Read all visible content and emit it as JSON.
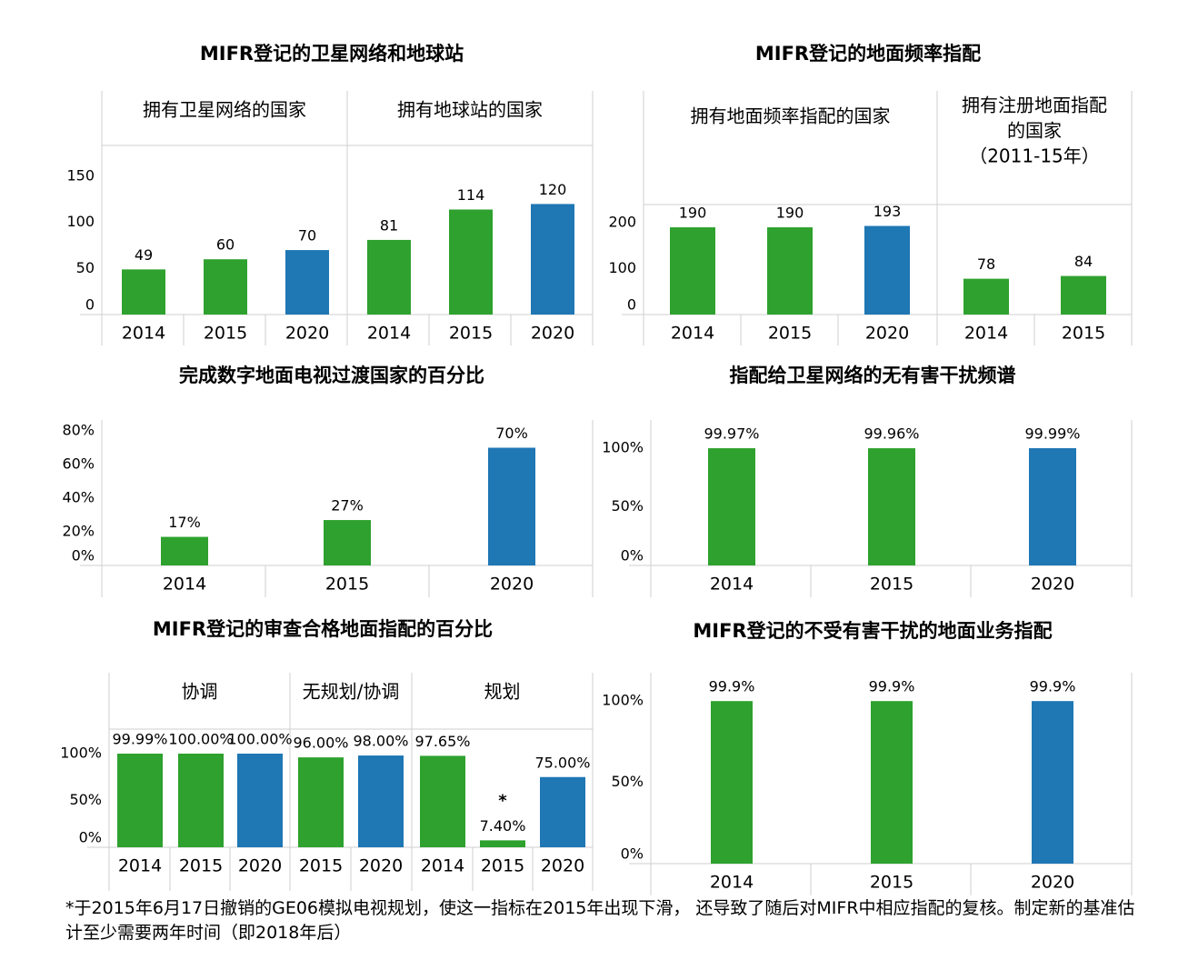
{
  "colors": {
    "green": "#2ea12e",
    "blue": "#1f77b4",
    "grid": "#cfcfcf",
    "text": "#000000"
  },
  "chart_data": [
    {
      "id": "c1",
      "type": "bar",
      "title": "MIFR登记的卫星网络和地球站",
      "groups": [
        {
          "header": "拥有卫星网络的国家",
          "categories": [
            "2014",
            "2015",
            "2020"
          ],
          "values": [
            49,
            60,
            70
          ],
          "labels": [
            "49",
            "60",
            "70"
          ],
          "colors": [
            "green",
            "green",
            "blue"
          ]
        },
        {
          "header": "拥有地球站的国家",
          "categories": [
            "2014",
            "2015",
            "2020"
          ],
          "values": [
            81,
            114,
            120
          ],
          "labels": [
            "81",
            "114",
            "120"
          ],
          "colors": [
            "green",
            "green",
            "blue"
          ]
        }
      ],
      "ylim": [
        0,
        150
      ],
      "yticks": [
        {
          "v": 0,
          "label": "0"
        },
        {
          "v": 50,
          "label": "50"
        },
        {
          "v": 100,
          "label": "100"
        },
        {
          "v": 150,
          "label": "150"
        }
      ]
    },
    {
      "id": "c2",
      "type": "bar",
      "title": "MIFR登记的地面频率指配",
      "groups": [
        {
          "header": "拥有地面频率指配的国家",
          "categories": [
            "2014",
            "2015",
            "2020"
          ],
          "values": [
            190,
            190,
            193
          ],
          "labels": [
            "190",
            "190",
            "193"
          ],
          "colors": [
            "green",
            "green",
            "blue"
          ]
        },
        {
          "header": "拥有注册地面指配的国家（2011-15年）",
          "header_lines": [
            "拥有注册地面指配",
            "的国家",
            "（2011-15年）"
          ],
          "categories": [
            "2014",
            "2015"
          ],
          "values": [
            78,
            84
          ],
          "labels": [
            "78",
            "84"
          ],
          "colors": [
            "green",
            "green"
          ]
        }
      ],
      "ylim": [
        0,
        200
      ],
      "yticks": [
        {
          "v": 0,
          "label": "0"
        },
        {
          "v": 100,
          "label": "100"
        },
        {
          "v": 200,
          "label": "200"
        }
      ]
    },
    {
      "id": "c3",
      "type": "bar",
      "title": "完成数字地面电视过渡国家的百分比",
      "groups": [
        {
          "header": "",
          "categories": [
            "2014",
            "2015",
            "2020"
          ],
          "values": [
            17,
            27,
            70
          ],
          "labels": [
            "17%",
            "27%",
            "70%"
          ],
          "colors": [
            "green",
            "green",
            "blue"
          ]
        }
      ],
      "ylim": [
        0,
        80
      ],
      "yticks": [
        {
          "v": 0,
          "label": "0%"
        },
        {
          "v": 20,
          "label": "20%"
        },
        {
          "v": 40,
          "label": "40%"
        },
        {
          "v": 60,
          "label": "60%"
        },
        {
          "v": 80,
          "label": "80%"
        }
      ]
    },
    {
      "id": "c4",
      "type": "bar",
      "title": "指配给卫星网络的无有害干扰频谱",
      "groups": [
        {
          "header": "",
          "categories": [
            "2014",
            "2015",
            "2020"
          ],
          "values": [
            99.97,
            99.96,
            99.99
          ],
          "labels": [
            "99.97%",
            "99.96%",
            "99.99%"
          ],
          "colors": [
            "green",
            "green",
            "blue"
          ]
        }
      ],
      "ylim": [
        0,
        100
      ],
      "yticks": [
        {
          "v": 0,
          "label": "0%"
        },
        {
          "v": 50,
          "label": "50%"
        },
        {
          "v": 100,
          "label": "100%"
        }
      ]
    },
    {
      "id": "c5",
      "type": "bar",
      "title": "MIFR登记的审查合格地面指配的百分比",
      "groups": [
        {
          "header": "协调",
          "categories": [
            "2014",
            "2015",
            "2020"
          ],
          "values": [
            99.99,
            100,
            100
          ],
          "labels": [
            "99.99%",
            "100.00%",
            "100.00%"
          ],
          "colors": [
            "green",
            "green",
            "blue"
          ]
        },
        {
          "header": "无规划/协调",
          "categories": [
            "2015",
            "2020"
          ],
          "values": [
            96,
            98
          ],
          "labels": [
            "96.00%",
            "98.00%"
          ],
          "colors": [
            "green",
            "blue"
          ]
        },
        {
          "header": "规划",
          "categories": [
            "2014",
            "2015",
            "2020"
          ],
          "values": [
            97.65,
            7.4,
            75
          ],
          "labels": [
            "97.65%",
            "7.40%",
            "75.00%"
          ],
          "colors": [
            "green",
            "green",
            "blue"
          ],
          "marks": [
            "",
            "*",
            ""
          ]
        }
      ],
      "ylim": [
        0,
        100
      ],
      "yticks": [
        {
          "v": 0,
          "label": "0%"
        },
        {
          "v": 50,
          "label": "50%"
        },
        {
          "v": 100,
          "label": "100%"
        }
      ]
    },
    {
      "id": "c6",
      "type": "bar",
      "title": "MIFR登记的不受有害干扰的地面业务指配",
      "groups": [
        {
          "header": "",
          "categories": [
            "2014",
            "2015",
            "2020"
          ],
          "values": [
            99.9,
            99.9,
            99.9
          ],
          "labels": [
            "99.9%",
            "99.9%",
            "99.9%"
          ],
          "colors": [
            "green",
            "green",
            "blue"
          ]
        }
      ],
      "ylim": [
        0,
        100
      ],
      "yticks": [
        {
          "v": 0,
          "label": "0%"
        },
        {
          "v": 50,
          "label": "50%"
        },
        {
          "v": 100,
          "label": "100%"
        }
      ]
    }
  ],
  "footnote": "*于2015年6月17日撤销的GE06模拟电视规划，使这一指标在2015年出现下滑， 还导致了随后对MIFR中相应指配的复核。制定新的基准估计至少需要两年时间（即2018年后）"
}
